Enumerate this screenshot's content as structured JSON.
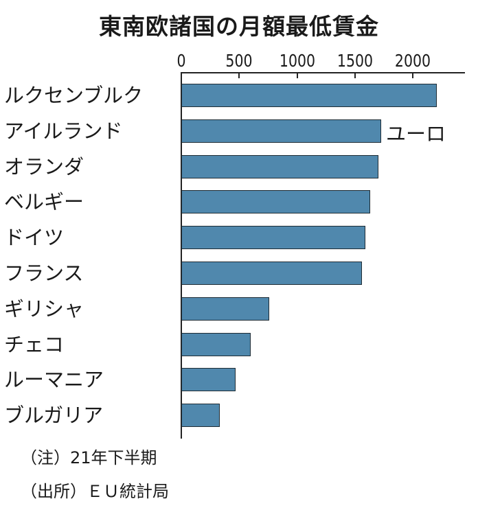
{
  "chart_data": {
    "type": "bar",
    "orientation": "horizontal",
    "title": "東南欧諸国の月額最低賃金",
    "unit_label": "ユーロ",
    "xlabel": "",
    "ylabel": "",
    "xlim": [
      0,
      2400
    ],
    "x_ticks": [
      0,
      500,
      1000,
      1500,
      2000
    ],
    "grid": false,
    "legend": null,
    "categories": [
      "ルクセンブルク",
      "アイルランド",
      "オランダ",
      "ベルギー",
      "ドイツ",
      "フランス",
      "ギリシャ",
      "チェコ",
      "ルーマニア",
      "ブルガリア"
    ],
    "values": [
      2202,
      1724,
      1701,
      1626,
      1585,
      1555,
      758,
      600,
      467,
      332
    ],
    "bar_color": "#5088ad",
    "notes": [
      "（注）21年下半期",
      "（出所）ＥＵ統計局"
    ]
  },
  "ticks": [
    "0",
    "500",
    "1000",
    "1500",
    "2000"
  ],
  "labels": [
    "ルクセンブルク",
    "アイルランド",
    "オランダ",
    "ベルギー",
    "ドイツ",
    "フランス",
    "ギリシャ",
    "チェコ",
    "ルーマニア",
    "ブルガリア"
  ],
  "title": "東南欧諸国の月額最低賃金",
  "unit": "ユーロ",
  "note1": "（注）21年下半期",
  "note2": "（出所）ＥＵ統計局"
}
